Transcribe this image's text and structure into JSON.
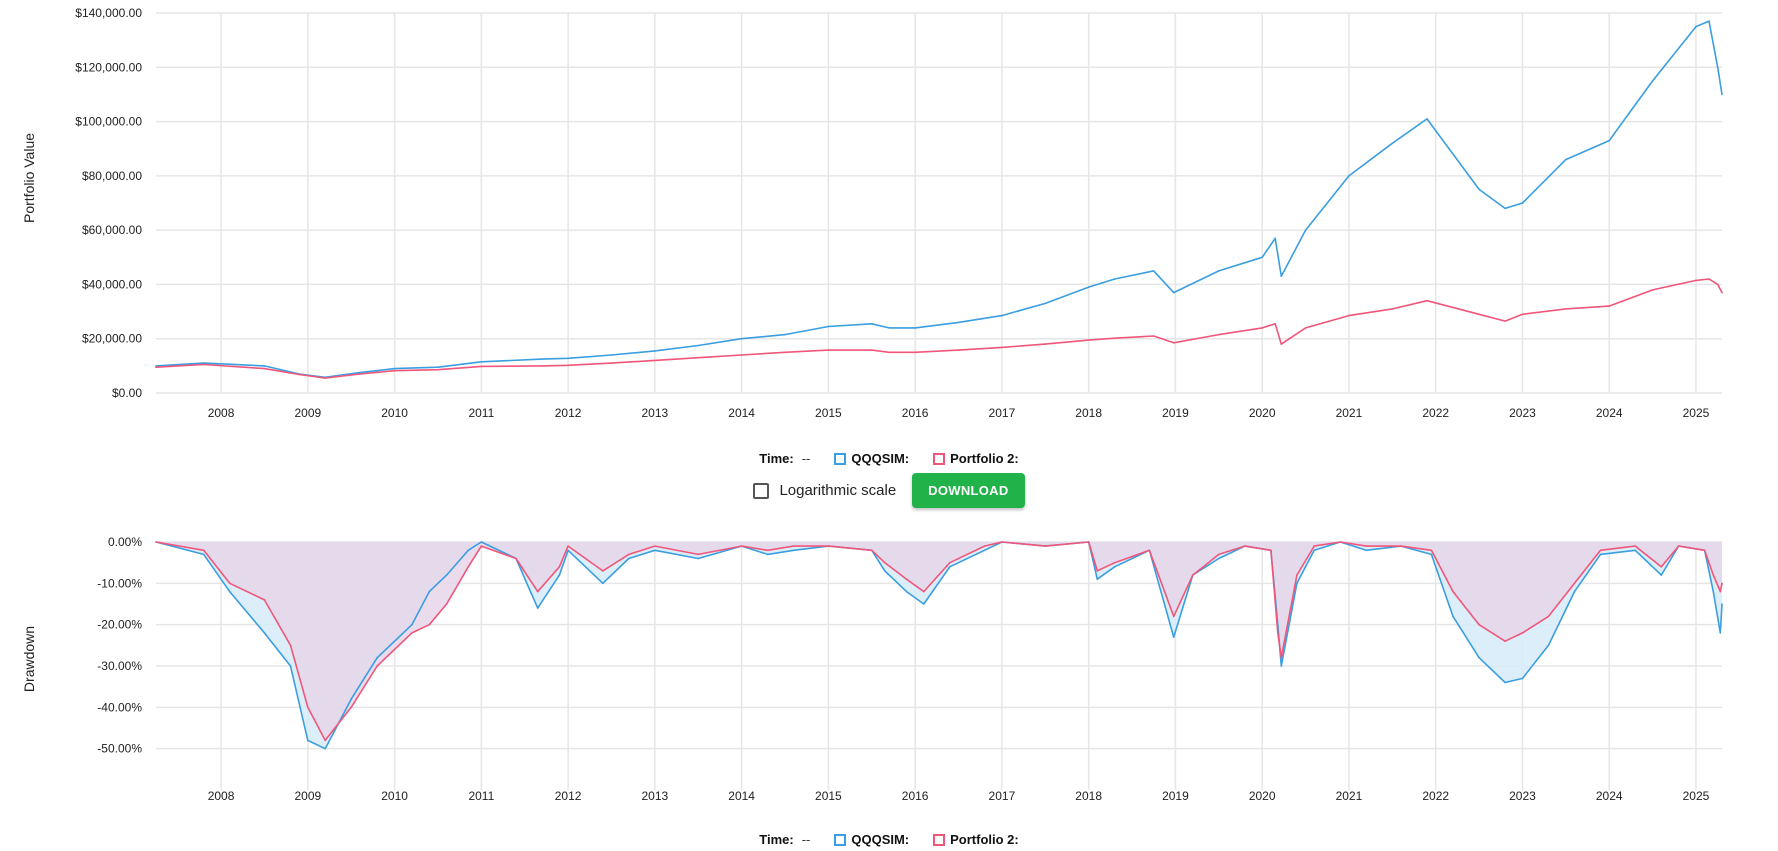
{
  "colors": {
    "qqqsim": "#3a9ee0",
    "portfolio2": "#f0567a",
    "grid": "#e6e6e6",
    "fill_qqqsim": "#d6ebf8",
    "fill_portfolio2": "#e6d6ea",
    "download": "#21b24a"
  },
  "legend": {
    "time_label": "Time:",
    "time_value": "--",
    "series1_label": "QQQSIM:",
    "series2_label": "Portfolio 2:"
  },
  "controls": {
    "log_scale_label": "Logarithmic scale",
    "download_label": "DOWNLOAD"
  },
  "chart_data": [
    {
      "type": "line",
      "ylabel": "Portfolio Value",
      "ylim": [
        0,
        140000
      ],
      "yticks": [
        "$0.00",
        "$20,000.00",
        "$40,000.00",
        "$60,000.00",
        "$80,000.00",
        "$100,000.00",
        "$120,000.00",
        "$140,000.00"
      ],
      "xticks": [
        "2008",
        "2009",
        "2010",
        "2011",
        "2012",
        "2013",
        "2014",
        "2015",
        "2016",
        "2017",
        "2018",
        "2019",
        "2020",
        "2021",
        "2022",
        "2023",
        "2024",
        "2025"
      ],
      "xlim": [
        2007.25,
        2025.3
      ],
      "grid": true,
      "series": [
        {
          "name": "QQQSIM",
          "x": [
            2007.25,
            2007.8,
            2008.5,
            2008.9,
            2009.2,
            2009.6,
            2010.0,
            2010.5,
            2011.0,
            2011.7,
            2012.0,
            2012.5,
            2013.0,
            2013.5,
            2014.0,
            2014.5,
            2015.0,
            2015.5,
            2015.7,
            2016.0,
            2016.5,
            2017.0,
            2017.5,
            2018.0,
            2018.3,
            2018.75,
            2018.98,
            2019.5,
            2020.0,
            2020.15,
            2020.22,
            2020.5,
            2021.0,
            2021.5,
            2021.9,
            2022.5,
            2022.8,
            2023.0,
            2023.5,
            2024.0,
            2024.5,
            2025.0,
            2025.15,
            2025.25,
            2025.3
          ],
          "values": [
            10000,
            11000,
            10000,
            7000,
            5800,
            7500,
            9000,
            9500,
            11500,
            12500,
            12800,
            14000,
            15500,
            17500,
            20000,
            21500,
            24500,
            25500,
            24000,
            24000,
            26000,
            28500,
            33000,
            39000,
            42000,
            45000,
            37000,
            45000,
            50000,
            57000,
            43000,
            60000,
            80000,
            92000,
            101000,
            75000,
            68000,
            70000,
            86000,
            93000,
            115000,
            135000,
            137000,
            120000,
            110000
          ]
        },
        {
          "name": "Portfolio 2",
          "x": [
            2007.25,
            2007.8,
            2008.5,
            2008.9,
            2009.2,
            2009.6,
            2010.0,
            2010.5,
            2011.0,
            2011.7,
            2012.0,
            2012.5,
            2013.0,
            2013.5,
            2014.0,
            2014.5,
            2015.0,
            2015.5,
            2015.7,
            2016.0,
            2016.5,
            2017.0,
            2017.5,
            2018.0,
            2018.3,
            2018.75,
            2018.98,
            2019.5,
            2020.0,
            2020.15,
            2020.22,
            2020.5,
            2021.0,
            2021.5,
            2021.9,
            2022.5,
            2022.8,
            2023.0,
            2023.5,
            2024.0,
            2024.5,
            2025.0,
            2025.15,
            2025.25,
            2025.3
          ],
          "values": [
            9500,
            10500,
            9000,
            6800,
            5500,
            7000,
            8200,
            8600,
            9800,
            10000,
            10200,
            11000,
            12000,
            13000,
            14000,
            15000,
            15800,
            15800,
            15000,
            15000,
            15800,
            16800,
            18000,
            19500,
            20200,
            21000,
            18500,
            21500,
            24000,
            25500,
            18000,
            24000,
            28500,
            31000,
            34000,
            29000,
            26500,
            29000,
            31000,
            32000,
            38000,
            41500,
            42000,
            40000,
            37000
          ]
        }
      ]
    },
    {
      "type": "area",
      "ylabel": "Drawdown",
      "ylim": [
        -60,
        0
      ],
      "yticks": [
        "0.00%",
        "-10.00%",
        "-20.00%",
        "-30.00%",
        "-40.00%",
        "-50.00%"
      ],
      "xticks": [
        "2008",
        "2009",
        "2010",
        "2011",
        "2012",
        "2013",
        "2014",
        "2015",
        "2016",
        "2017",
        "2018",
        "2019",
        "2020",
        "2021",
        "2022",
        "2023",
        "2024",
        "2025"
      ],
      "xlim": [
        2007.25,
        2025.3
      ],
      "grid": true,
      "series": [
        {
          "name": "QQQSIM",
          "x": [
            2007.25,
            2007.8,
            2008.1,
            2008.5,
            2008.8,
            2009.0,
            2009.2,
            2009.5,
            2009.8,
            2010.2,
            2010.4,
            2010.6,
            2010.85,
            2011.0,
            2011.4,
            2011.65,
            2011.9,
            2012.0,
            2012.4,
            2012.7,
            2013.0,
            2013.5,
            2014.0,
            2014.3,
            2014.6,
            2015.0,
            2015.5,
            2015.65,
            2015.9,
            2016.1,
            2016.4,
            2016.8,
            2017.0,
            2017.5,
            2018.0,
            2018.1,
            2018.3,
            2018.7,
            2018.98,
            2019.2,
            2019.5,
            2019.8,
            2020.1,
            2020.18,
            2020.22,
            2020.4,
            2020.6,
            2020.9,
            2021.2,
            2021.6,
            2021.95,
            2022.2,
            2022.5,
            2022.8,
            2023.0,
            2023.3,
            2023.6,
            2023.9,
            2024.3,
            2024.6,
            2024.8,
            2025.1,
            2025.2,
            2025.28,
            2025.3
          ],
          "values": [
            0,
            -3,
            -12,
            -22,
            -30,
            -48,
            -50,
            -38,
            -28,
            -20,
            -12,
            -8,
            -2,
            0,
            -4,
            -16,
            -8,
            -2,
            -10,
            -4,
            -2,
            -4,
            -1,
            -3,
            -2,
            -1,
            -2,
            -7,
            -12,
            -15,
            -6,
            -2,
            0,
            -1,
            0,
            -9,
            -6,
            -2,
            -23,
            -8,
            -4,
            -1,
            -2,
            -20,
            -30,
            -10,
            -2,
            0,
            -2,
            -1,
            -3,
            -18,
            -28,
            -34,
            -33,
            -25,
            -12,
            -3,
            -2,
            -8,
            -1,
            -2,
            -12,
            -22,
            -15
          ]
        },
        {
          "name": "Portfolio 2",
          "x": [
            2007.25,
            2007.8,
            2008.1,
            2008.5,
            2008.8,
            2009.0,
            2009.2,
            2009.5,
            2009.8,
            2010.2,
            2010.4,
            2010.6,
            2010.85,
            2011.0,
            2011.4,
            2011.65,
            2011.9,
            2012.0,
            2012.4,
            2012.7,
            2013.0,
            2013.5,
            2014.0,
            2014.3,
            2014.6,
            2015.0,
            2015.5,
            2015.65,
            2015.9,
            2016.1,
            2016.4,
            2016.8,
            2017.0,
            2017.5,
            2018.0,
            2018.1,
            2018.3,
            2018.7,
            2018.98,
            2019.2,
            2019.5,
            2019.8,
            2020.1,
            2020.18,
            2020.22,
            2020.4,
            2020.6,
            2020.9,
            2021.2,
            2021.6,
            2021.95,
            2022.2,
            2022.5,
            2022.8,
            2023.0,
            2023.3,
            2023.6,
            2023.9,
            2024.3,
            2024.6,
            2024.8,
            2025.1,
            2025.2,
            2025.28,
            2025.3
          ],
          "values": [
            0,
            -2,
            -10,
            -14,
            -25,
            -40,
            -48,
            -40,
            -30,
            -22,
            -20,
            -15,
            -6,
            -1,
            -4,
            -12,
            -6,
            -1,
            -7,
            -3,
            -1,
            -3,
            -1,
            -2,
            -1,
            -1,
            -2,
            -5,
            -9,
            -12,
            -5,
            -1,
            0,
            -1,
            0,
            -7,
            -5,
            -2,
            -18,
            -8,
            -3,
            -1,
            -2,
            -22,
            -28,
            -8,
            -1,
            0,
            -1,
            -1,
            -2,
            -12,
            -20,
            -24,
            -22,
            -18,
            -10,
            -2,
            -1,
            -6,
            -1,
            -2,
            -8,
            -12,
            -10
          ]
        }
      ]
    }
  ]
}
